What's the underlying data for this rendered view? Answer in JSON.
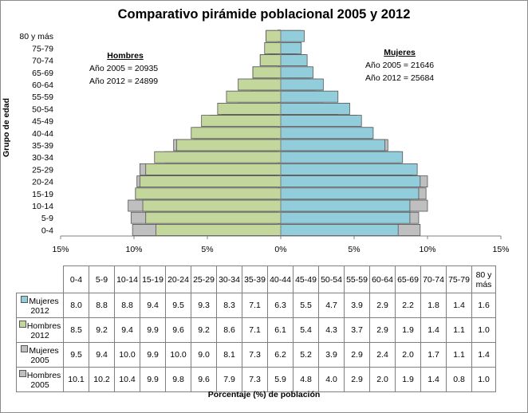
{
  "chart_data": {
    "type": "bar",
    "title": "Comparativo pirámide poblacional 2005 y 2012",
    "orientation": "horizontal-population-pyramid",
    "ylabel": "Grupo de edad",
    "xlabel": "Porcentaje (%) de población",
    "xlim": [
      -15,
      15
    ],
    "xticks": [
      "15%",
      "10%",
      "5%",
      "0%",
      "5%",
      "10%",
      "15%"
    ],
    "categories": [
      "0-4",
      "5-9",
      "10-14",
      "15-19",
      "20-24",
      "25-29",
      "30-34",
      "35-39",
      "40-44",
      "45-49",
      "50-54",
      "55-59",
      "60-64",
      "65-69",
      "70-74",
      "75-79",
      "80 y más"
    ],
    "series": [
      {
        "name": "Mujeres 2012",
        "side": "right",
        "color": "#92CDDC",
        "values": [
          8.0,
          8.8,
          8.8,
          9.4,
          9.5,
          9.3,
          8.3,
          7.1,
          6.3,
          5.5,
          4.7,
          3.9,
          2.9,
          2.2,
          1.8,
          1.4,
          1.6
        ]
      },
      {
        "name": "Hombres 2012",
        "side": "left",
        "color": "#C3D69B",
        "values": [
          8.5,
          9.2,
          9.4,
          9.9,
          9.6,
          9.2,
          8.6,
          7.1,
          6.1,
          5.4,
          4.3,
          3.7,
          2.9,
          1.9,
          1.4,
          1.1,
          1.0
        ]
      },
      {
        "name": "Mujeres 2005",
        "side": "right",
        "color": "#BFBFBF",
        "values": [
          9.5,
          9.4,
          10.0,
          9.9,
          10.0,
          9.0,
          8.1,
          7.3,
          6.2,
          5.2,
          3.9,
          2.9,
          2.4,
          2.0,
          1.7,
          1.1,
          1.4
        ]
      },
      {
        "name": "Hombres 2005",
        "side": "left",
        "color": "#BFBFBF",
        "values": [
          10.1,
          10.2,
          10.4,
          9.9,
          9.8,
          9.6,
          7.9,
          7.3,
          5.9,
          4.8,
          4.0,
          2.9,
          2.0,
          1.9,
          1.4,
          0.8,
          1.0
        ]
      }
    ],
    "table_column_headers": [
      "0-4",
      "5-9",
      "10-14",
      "15-19",
      "20-24",
      "25-29",
      "30-34",
      "35-39",
      "40-44",
      "45-49",
      "50-54",
      "55-59",
      "60-64",
      "65-69",
      "70-74",
      "75-79",
      "80 y más"
    ],
    "table_rows": [
      {
        "label": "Mujeres 2012",
        "values": [
          "8.0",
          "8.8",
          "8.8",
          "9.4",
          "9.5",
          "9.3",
          "8.3",
          "7.1",
          "6.3",
          "5.5",
          "4.7",
          "3.9",
          "2.9",
          "2.2",
          "1.8",
          "1.4",
          "1.6"
        ]
      },
      {
        "label": "Hombres 2012",
        "values": [
          "8.5",
          "9.2",
          "9.4",
          "9.9",
          "9.6",
          "9.2",
          "8.6",
          "7.1",
          "6.1",
          "5.4",
          "4.3",
          "3.7",
          "2.9",
          "1.9",
          "1.4",
          "1.1",
          "1.0"
        ]
      },
      {
        "label": "Mujeres 2005",
        "values": [
          "9.5",
          "9.4",
          "10.0",
          "9.9",
          "10.0",
          "9.0",
          "8.1",
          "7.3",
          "6.2",
          "5.2",
          "3.9",
          "2.9",
          "2.4",
          "2.0",
          "1.7",
          "1.1",
          "1.4"
        ]
      },
      {
        "label": "Hombres 2005",
        "values": [
          "10.1",
          "10.2",
          "10.4",
          "9.9",
          "9.8",
          "9.6",
          "7.9",
          "7.3",
          "5.9",
          "4.8",
          "4.0",
          "2.9",
          "2.0",
          "1.9",
          "1.4",
          "0.8",
          "1.0"
        ]
      }
    ],
    "annotations": {
      "men": {
        "title": "Hombres",
        "line_2005": "Año 2005 = 20935",
        "line_2012": "Año 2012 = 24899"
      },
      "women": {
        "title": "Mujeres",
        "line_2005": "Año 2005 = 21646",
        "line_2012": "Año 2012 = 25684"
      }
    },
    "grid": false,
    "legend": "table"
  }
}
